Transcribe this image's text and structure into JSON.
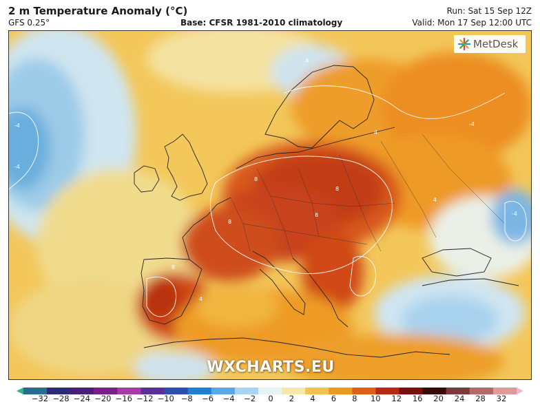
{
  "header": {
    "title": "2 m Temperature Anomaly (°C)",
    "model": "GFS 0.25°",
    "base": "Base: CFSR 1981-2010 climatology",
    "run": "Run: Sat 15 Sep 12Z",
    "valid": "Valid: Mon 17 Sep 12:00 UTC"
  },
  "logo": {
    "text": "MetDesk",
    "icon": "metdesk-star-icon"
  },
  "watermark": "WXCHARTS.EU",
  "contour_labels": [
    "-4",
    "-4",
    "-4",
    "4",
    "4",
    "4",
    "8",
    "8",
    "8",
    "8",
    "8",
    "4",
    "-4"
  ],
  "colorbar": {
    "ticks": [
      "−32",
      "−28",
      "−24",
      "−20",
      "−16",
      "−12",
      "−10",
      "−8",
      "−6",
      "−4",
      "−2",
      "0",
      "2",
      "4",
      "6",
      "8",
      "10",
      "12",
      "16",
      "20",
      "24",
      "28",
      "32"
    ],
    "colors": [
      "#2bb38a",
      "#2a6e8f",
      "#2e2a7a",
      "#4a1f7a",
      "#7a1f87",
      "#a83aa8",
      "#5a2f9a",
      "#2c4fb0",
      "#1f7fd0",
      "#57a8e6",
      "#a9d4f2",
      "#eaf3f4",
      "#f7e7a8",
      "#f3c24a",
      "#ee9a20",
      "#e0601a",
      "#b82812",
      "#7a0f10",
      "#3a0a0a",
      "#7a3b3b",
      "#b56a6a",
      "#e09a9a",
      "#f0b8c8"
    ]
  }
}
